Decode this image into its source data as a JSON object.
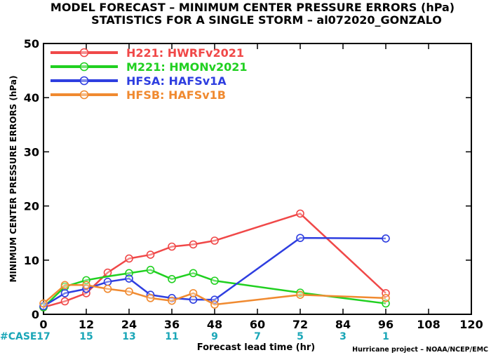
{
  "chart_data": {
    "type": "line",
    "title": "MODEL FORECAST – MINIMUM CENTER PRESSURE ERRORS (hPa)",
    "subtitle": "STATISTICS FOR A SINGLE STORM – al072020_GONZALO",
    "xlabel": "Forecast lead time (hr)",
    "ylabel": "MINIMUM CENTER PRESSURE ERRORS (hPa)",
    "xlim": [
      0,
      120
    ],
    "ylim": [
      0,
      50
    ],
    "xticks": [
      "0",
      "12",
      "24",
      "36",
      "48",
      "60",
      "72",
      "84",
      "96",
      "108",
      "120"
    ],
    "yticks": [
      "0",
      "10",
      "20",
      "30",
      "40",
      "50"
    ],
    "grid": false,
    "legend_position": "top-left",
    "case_label": "#CASE",
    "cases": [
      {
        "x": 0,
        "n": "17"
      },
      {
        "x": 12,
        "n": "15"
      },
      {
        "x": 24,
        "n": "13"
      },
      {
        "x": 36,
        "n": "11"
      },
      {
        "x": 48,
        "n": "9"
      },
      {
        "x": 60,
        "n": "7"
      },
      {
        "x": 72,
        "n": "5"
      },
      {
        "x": 84,
        "n": "3"
      },
      {
        "x": 96,
        "n": "1"
      }
    ],
    "credit": "Hurricane project – NOAA/NCEP/EMC",
    "series": [
      {
        "name": "H221: HWRFv2021",
        "color": "#f04848",
        "x": [
          0,
          6,
          12,
          18,
          24,
          30,
          36,
          42,
          48,
          72,
          96
        ],
        "y": [
          1.3,
          2.4,
          3.9,
          7.7,
          10.3,
          11.0,
          12.5,
          12.9,
          13.6,
          18.6,
          3.9
        ],
        "markers": [
          true,
          true,
          true,
          true,
          true,
          true,
          true,
          true,
          true,
          true,
          true
        ]
      },
      {
        "name": "M221: HMONv2021",
        "color": "#20d020",
        "x": [
          0,
          6,
          12,
          18,
          24,
          30,
          36,
          42,
          48,
          72,
          96
        ],
        "y": [
          1.3,
          5.1,
          6.3,
          7.0,
          7.6,
          8.2,
          6.5,
          7.6,
          6.2,
          4.0,
          2.0
        ],
        "markers": [
          true,
          true,
          true,
          false,
          true,
          true,
          true,
          true,
          true,
          true,
          true
        ]
      },
      {
        "name": "HFSA: HAFSv1A",
        "color": "#2e3ee0",
        "x": [
          0,
          6,
          12,
          18,
          24,
          30,
          36,
          42,
          48,
          72,
          96
        ],
        "y": [
          1.5,
          3.9,
          4.7,
          6.0,
          6.6,
          3.6,
          3.0,
          2.7,
          2.7,
          14.1,
          14.0
        ],
        "markers": [
          true,
          true,
          true,
          true,
          true,
          true,
          true,
          true,
          true,
          true,
          true
        ]
      },
      {
        "name": "HFSB: HAFSv1B",
        "color": "#f08a30",
        "x": [
          0,
          6,
          12,
          18,
          24,
          30,
          36,
          42,
          48,
          72,
          96
        ],
        "y": [
          2.0,
          5.4,
          5.4,
          4.7,
          4.2,
          3.0,
          2.5,
          3.9,
          1.8,
          3.6,
          3.0
        ],
        "markers": [
          true,
          true,
          true,
          true,
          true,
          true,
          true,
          true,
          true,
          true,
          true
        ]
      }
    ]
  }
}
